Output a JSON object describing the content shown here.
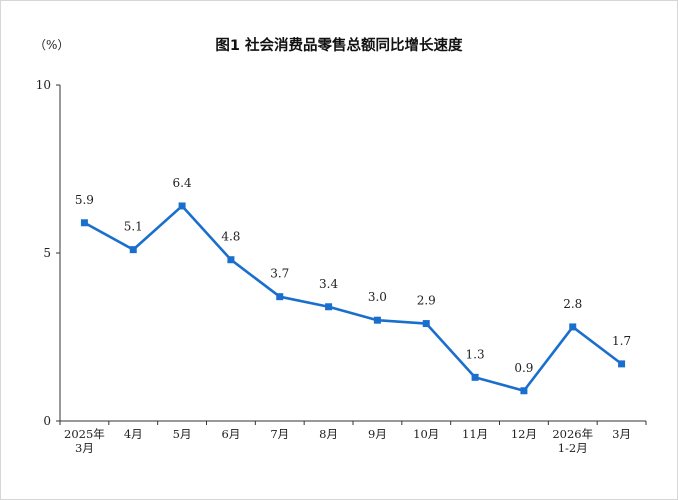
{
  "chart_data": {
    "type": "line",
    "title": "图1  社会消费品零售总额同比增长速度",
    "unit_label": "（%）",
    "categories": [
      [
        "2025年",
        "3月"
      ],
      [
        "4月"
      ],
      [
        "5月"
      ],
      [
        "6月"
      ],
      [
        "7月"
      ],
      [
        "8月"
      ],
      [
        "9月"
      ],
      [
        "10月"
      ],
      [
        "11月"
      ],
      [
        "12月"
      ],
      [
        "2026年",
        "1-2月"
      ],
      [
        "3月"
      ]
    ],
    "series": [
      {
        "values": [
          5.9,
          5.1,
          6.4,
          4.8,
          3.7,
          3.4,
          3.0,
          2.9,
          1.3,
          0.9,
          2.8,
          1.7
        ],
        "labels": [
          "5.9",
          "5.1",
          "6.4",
          "4.8",
          "3.7",
          "3.4",
          "3.0",
          "2.9",
          "1.3",
          "0.9",
          "2.8",
          "1.7"
        ],
        "color": "#1a6fcd"
      }
    ],
    "yticks": [
      0,
      5,
      10
    ],
    "ylim": [
      0,
      10
    ],
    "grid": false,
    "legend": "none"
  }
}
